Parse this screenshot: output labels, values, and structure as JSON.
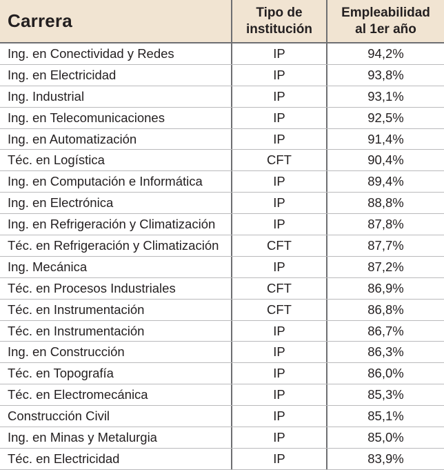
{
  "header": {
    "col1": "Carrera",
    "col2_line1": "Tipo de",
    "col2_line2": "institución",
    "col3_line1": "Empleabilidad",
    "col3_line2": "al 1er año"
  },
  "rows": [
    {
      "carrera": "Ing. en Conectividad y Redes",
      "tipo": "IP",
      "empleabilidad": "94,2%"
    },
    {
      "carrera": "Ing. en Electricidad",
      "tipo": "IP",
      "empleabilidad": "93,8%"
    },
    {
      "carrera": "Ing. Industrial",
      "tipo": "IP",
      "empleabilidad": "93,1%"
    },
    {
      "carrera": "Ing. en Telecomunicaciones",
      "tipo": "IP",
      "empleabilidad": "92,5%"
    },
    {
      "carrera": "Ing. en Automatización",
      "tipo": "IP",
      "empleabilidad": "91,4%"
    },
    {
      "carrera": "Téc. en Logística",
      "tipo": "CFT",
      "empleabilidad": "90,4%"
    },
    {
      "carrera": "Ing. en Computación e Informática",
      "tipo": "IP",
      "empleabilidad": "89,4%"
    },
    {
      "carrera": "Ing. en Electrónica",
      "tipo": "IP",
      "empleabilidad": "88,8%"
    },
    {
      "carrera": "Ing. en Refrigeración y Climatización",
      "tipo": "IP",
      "empleabilidad": "87,8%"
    },
    {
      "carrera": "Téc. en Refrigeración y Climatización",
      "tipo": "CFT",
      "empleabilidad": "87,7%"
    },
    {
      "carrera": "Ing. Mecánica",
      "tipo": "IP",
      "empleabilidad": "87,2%"
    },
    {
      "carrera": "Téc. en Procesos Industriales",
      "tipo": "CFT",
      "empleabilidad": "86,9%"
    },
    {
      "carrera": "Téc. en Instrumentación",
      "tipo": "CFT",
      "empleabilidad": "86,8%"
    },
    {
      "carrera": "Téc. en Instrumentación",
      "tipo": "IP",
      "empleabilidad": "86,7%"
    },
    {
      "carrera": "Ing. en Construcción",
      "tipo": "IP",
      "empleabilidad": "86,3%"
    },
    {
      "carrera": "Téc. en Topografía",
      "tipo": "IP",
      "empleabilidad": "86,0%"
    },
    {
      "carrera": "Téc. en Electromecánica",
      "tipo": "IP",
      "empleabilidad": "85,3%"
    },
    {
      "carrera": "Construcción Civil",
      "tipo": "IP",
      "empleabilidad": "85,1%"
    },
    {
      "carrera": "Ing. en Minas y Metalurgia",
      "tipo": "IP",
      "empleabilidad": "85,0%"
    },
    {
      "carrera": "Téc. en Electricidad",
      "tipo": "IP",
      "empleabilidad": "83,9%"
    }
  ]
}
